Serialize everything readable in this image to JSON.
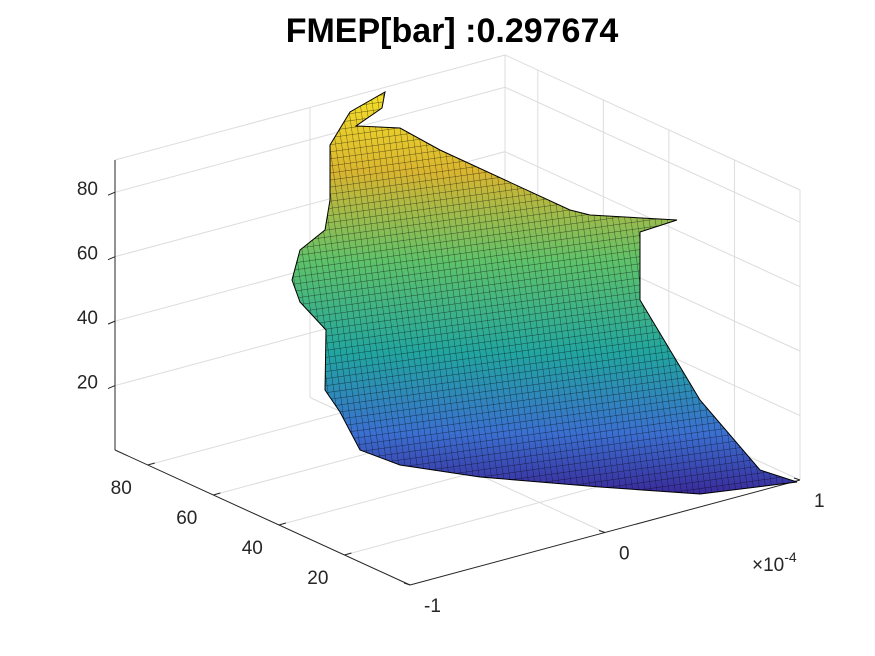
{
  "chart_data": {
    "type": "surface3d",
    "title": "FMEP[bar] :0.297674",
    "xlim": [
      -0.0001,
      0.0001
    ],
    "xticks": [
      {
        "value": -0.0001,
        "label": "-1"
      },
      0,
      {
        "value": 0.0001,
        "label": "1"
      }
    ],
    "x_multiplier": {
      "base": "×10",
      "exponent": "-4"
    },
    "ylim": [
      0,
      90
    ],
    "yticks": [
      20,
      40,
      60,
      80
    ],
    "zlim": [
      0,
      90
    ],
    "zticks": [
      20,
      40,
      60,
      80
    ],
    "grid": true
  }
}
